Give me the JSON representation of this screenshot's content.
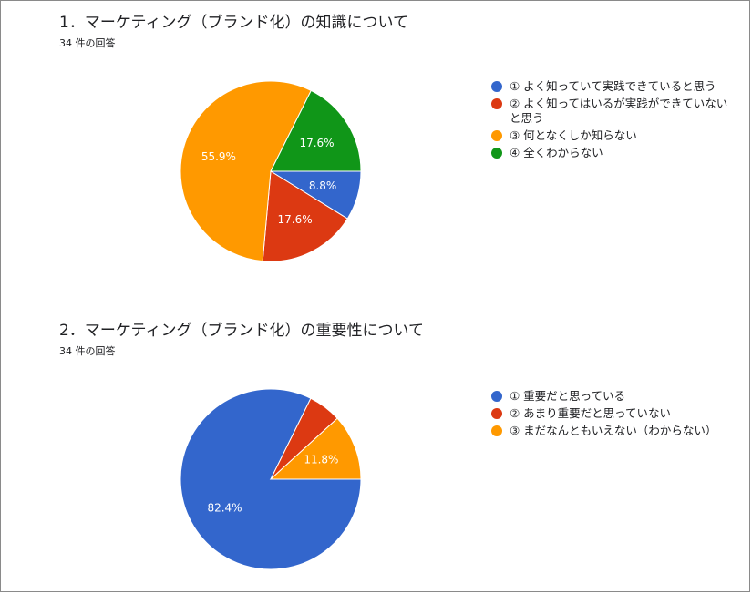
{
  "response_count_label": "34 件の回答",
  "chart_data": [
    {
      "type": "pie",
      "title": "1．マーケティング（ブランド化）の知識について",
      "subtitle": "34 件の回答",
      "categories": [
        "① よく知っていて実践できていると思う",
        "② よく知ってはいるが実践ができていないと思う",
        "③ 何となくしか知らない",
        "④ 全くわからない"
      ],
      "values": [
        8.8,
        17.6,
        55.9,
        17.6
      ],
      "data_labels": [
        "8.8%",
        "17.6%",
        "55.9%",
        "17.6%"
      ],
      "colors": [
        "#3366cc",
        "#dc3912",
        "#ff9900",
        "#109618"
      ],
      "legend_position": "right"
    },
    {
      "type": "pie",
      "title": "2．マーケティング（ブランド化）の重要性について",
      "subtitle": "34 件の回答",
      "categories": [
        "① 重要だと思っている",
        "② あまり重要だと思っていない",
        "③ まだなんともいえない（わからない）"
      ],
      "values": [
        82.4,
        5.9,
        11.8
      ],
      "data_labels": [
        "82.4%",
        "",
        "11.8%"
      ],
      "colors": [
        "#3366cc",
        "#dc3912",
        "#ff9900"
      ],
      "legend_position": "right"
    }
  ]
}
